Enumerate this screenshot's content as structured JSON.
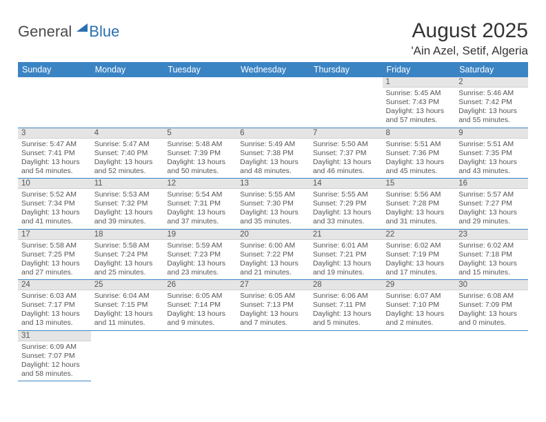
{
  "logo": {
    "text_general": "General",
    "text_blue": "Blue"
  },
  "title": {
    "month": "August 2025",
    "location": "'Ain Azel, Setif, Algeria"
  },
  "colors": {
    "header_bg": "#3b84c4",
    "header_text": "#ffffff",
    "daynum_bg": "#e5e5e5",
    "daynum_text": "#555555",
    "body_text": "#555555",
    "row_border": "#3b84c4",
    "logo_general": "#4a4a4a",
    "logo_blue": "#2a6fb0"
  },
  "typography": {
    "month_title_fontsize": 30,
    "location_fontsize": 17,
    "weekday_fontsize": 12.5,
    "daynum_fontsize": 11.5,
    "cell_fontsize": 10.5
  },
  "weekdays": [
    "Sunday",
    "Monday",
    "Tuesday",
    "Wednesday",
    "Thursday",
    "Friday",
    "Saturday"
  ],
  "weeks": [
    [
      null,
      null,
      null,
      null,
      null,
      {
        "n": "1",
        "sr": "5:45 AM",
        "ss": "7:43 PM",
        "dl": "13 hours and 57 minutes."
      },
      {
        "n": "2",
        "sr": "5:46 AM",
        "ss": "7:42 PM",
        "dl": "13 hours and 55 minutes."
      }
    ],
    [
      {
        "n": "3",
        "sr": "5:47 AM",
        "ss": "7:41 PM",
        "dl": "13 hours and 54 minutes."
      },
      {
        "n": "4",
        "sr": "5:47 AM",
        "ss": "7:40 PM",
        "dl": "13 hours and 52 minutes."
      },
      {
        "n": "5",
        "sr": "5:48 AM",
        "ss": "7:39 PM",
        "dl": "13 hours and 50 minutes."
      },
      {
        "n": "6",
        "sr": "5:49 AM",
        "ss": "7:38 PM",
        "dl": "13 hours and 48 minutes."
      },
      {
        "n": "7",
        "sr": "5:50 AM",
        "ss": "7:37 PM",
        "dl": "13 hours and 46 minutes."
      },
      {
        "n": "8",
        "sr": "5:51 AM",
        "ss": "7:36 PM",
        "dl": "13 hours and 45 minutes."
      },
      {
        "n": "9",
        "sr": "5:51 AM",
        "ss": "7:35 PM",
        "dl": "13 hours and 43 minutes."
      }
    ],
    [
      {
        "n": "10",
        "sr": "5:52 AM",
        "ss": "7:34 PM",
        "dl": "13 hours and 41 minutes."
      },
      {
        "n": "11",
        "sr": "5:53 AM",
        "ss": "7:32 PM",
        "dl": "13 hours and 39 minutes."
      },
      {
        "n": "12",
        "sr": "5:54 AM",
        "ss": "7:31 PM",
        "dl": "13 hours and 37 minutes."
      },
      {
        "n": "13",
        "sr": "5:55 AM",
        "ss": "7:30 PM",
        "dl": "13 hours and 35 minutes."
      },
      {
        "n": "14",
        "sr": "5:55 AM",
        "ss": "7:29 PM",
        "dl": "13 hours and 33 minutes."
      },
      {
        "n": "15",
        "sr": "5:56 AM",
        "ss": "7:28 PM",
        "dl": "13 hours and 31 minutes."
      },
      {
        "n": "16",
        "sr": "5:57 AM",
        "ss": "7:27 PM",
        "dl": "13 hours and 29 minutes."
      }
    ],
    [
      {
        "n": "17",
        "sr": "5:58 AM",
        "ss": "7:25 PM",
        "dl": "13 hours and 27 minutes."
      },
      {
        "n": "18",
        "sr": "5:58 AM",
        "ss": "7:24 PM",
        "dl": "13 hours and 25 minutes."
      },
      {
        "n": "19",
        "sr": "5:59 AM",
        "ss": "7:23 PM",
        "dl": "13 hours and 23 minutes."
      },
      {
        "n": "20",
        "sr": "6:00 AM",
        "ss": "7:22 PM",
        "dl": "13 hours and 21 minutes."
      },
      {
        "n": "21",
        "sr": "6:01 AM",
        "ss": "7:21 PM",
        "dl": "13 hours and 19 minutes."
      },
      {
        "n": "22",
        "sr": "6:02 AM",
        "ss": "7:19 PM",
        "dl": "13 hours and 17 minutes."
      },
      {
        "n": "23",
        "sr": "6:02 AM",
        "ss": "7:18 PM",
        "dl": "13 hours and 15 minutes."
      }
    ],
    [
      {
        "n": "24",
        "sr": "6:03 AM",
        "ss": "7:17 PM",
        "dl": "13 hours and 13 minutes."
      },
      {
        "n": "25",
        "sr": "6:04 AM",
        "ss": "7:15 PM",
        "dl": "13 hours and 11 minutes."
      },
      {
        "n": "26",
        "sr": "6:05 AM",
        "ss": "7:14 PM",
        "dl": "13 hours and 9 minutes."
      },
      {
        "n": "27",
        "sr": "6:05 AM",
        "ss": "7:13 PM",
        "dl": "13 hours and 7 minutes."
      },
      {
        "n": "28",
        "sr": "6:06 AM",
        "ss": "7:11 PM",
        "dl": "13 hours and 5 minutes."
      },
      {
        "n": "29",
        "sr": "6:07 AM",
        "ss": "7:10 PM",
        "dl": "13 hours and 2 minutes."
      },
      {
        "n": "30",
        "sr": "6:08 AM",
        "ss": "7:09 PM",
        "dl": "13 hours and 0 minutes."
      }
    ],
    [
      {
        "n": "31",
        "sr": "6:09 AM",
        "ss": "7:07 PM",
        "dl": "12 hours and 58 minutes."
      },
      null,
      null,
      null,
      null,
      null,
      null
    ]
  ],
  "labels": {
    "sunrise": "Sunrise:",
    "sunset": "Sunset:",
    "daylight": "Daylight:"
  }
}
